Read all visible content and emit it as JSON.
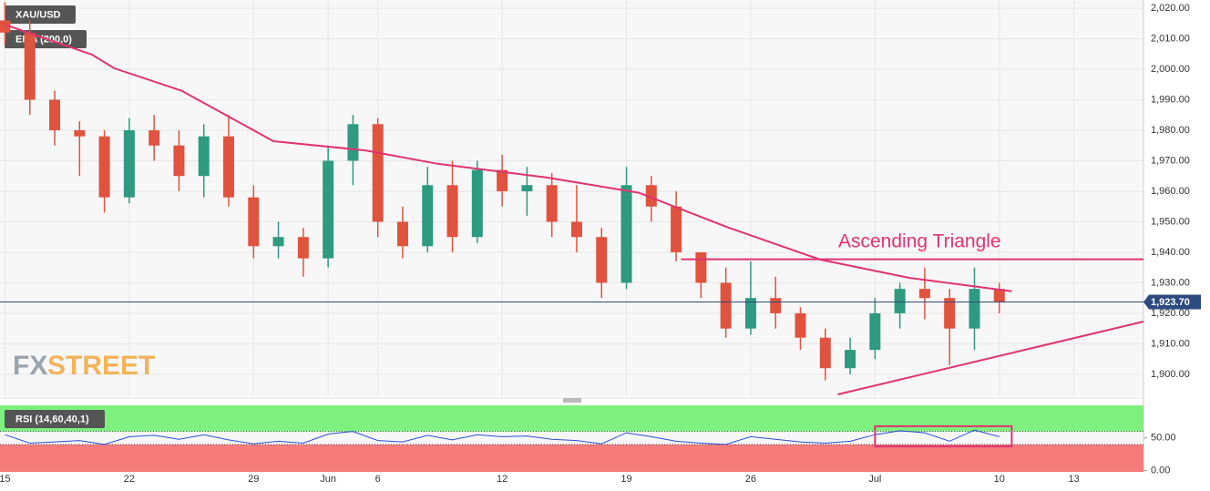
{
  "chart_data": {
    "type": "candlestick",
    "symbol": "XAU/USD",
    "watermark": {
      "prefix": "FX",
      "suffix": "STREET"
    },
    "annotation": "Ascending Triangle",
    "up_color": "#2e9a7f",
    "down_color": "#e0533e",
    "x": [
      0,
      1,
      2,
      3,
      4,
      5,
      6,
      7,
      8,
      9,
      10,
      11,
      12,
      13,
      14,
      15,
      16,
      17,
      18,
      19,
      20,
      21,
      22,
      23,
      24,
      25,
      26,
      27,
      28,
      29,
      30,
      31,
      32,
      33,
      34,
      35,
      36,
      37,
      38,
      39,
      40
    ],
    "open": [
      2016,
      2012,
      1990,
      1980,
      1978,
      1958,
      1980,
      1975,
      1965,
      1978,
      1958,
      1942,
      1945,
      1938,
      1970,
      1982,
      1950,
      1942,
      1962,
      1945,
      1967,
      1960,
      1962,
      1950,
      1945,
      1930,
      1962,
      1955,
      1940,
      1930,
      1915,
      1925,
      1920,
      1912,
      1902,
      1908,
      1920,
      1928,
      1925,
      1915,
      1928
    ],
    "high": [
      2022,
      2016,
      1993,
      1983,
      1980,
      1984,
      1985,
      1980,
      1982,
      1985,
      1962,
      1950,
      1948,
      1975,
      1985,
      1984,
      1955,
      1968,
      1970,
      1970,
      1972,
      1968,
      1966,
      1962,
      1948,
      1968,
      1965,
      1960,
      1940,
      1935,
      1937,
      1932,
      1922,
      1915,
      1912,
      1925,
      1930,
      1935,
      1928,
      1935,
      1930
    ],
    "low": [
      2008,
      1985,
      1975,
      1965,
      1953,
      1956,
      1970,
      1960,
      1958,
      1955,
      1938,
      1938,
      1932,
      1935,
      1962,
      1945,
      1938,
      1940,
      1940,
      1943,
      1955,
      1952,
      1945,
      1940,
      1925,
      1928,
      1950,
      1937,
      1925,
      1912,
      1913,
      1915,
      1908,
      1898,
      1900,
      1905,
      1915,
      1918,
      1903,
      1908,
      1920
    ],
    "close": [
      2012,
      1990,
      1980,
      1978,
      1958,
      1980,
      1975,
      1965,
      1978,
      1958,
      1942,
      1945,
      1938,
      1970,
      1982,
      1950,
      1942,
      1962,
      1945,
      1967,
      1960,
      1962,
      1950,
      1945,
      1930,
      1962,
      1955,
      1940,
      1930,
      1915,
      1925,
      1920,
      1912,
      1902,
      1908,
      1920,
      1928,
      1925,
      1915,
      1928,
      1923.7
    ],
    "ema": {
      "name": "EMA (200,0)",
      "color": "#e0336f",
      "x": [
        0,
        3.5,
        4.4,
        7.1,
        10.8,
        14.5,
        17.4,
        21.8,
        25.5,
        29.1,
        32.8,
        36.4,
        40.5
      ],
      "values": [
        2014.6,
        2004.8,
        2000.3,
        1993,
        1976.4,
        1973.4,
        1969,
        1964.5,
        1959.5,
        1948.1,
        1937.6,
        1931.6,
        1927.2
      ]
    },
    "last_price": {
      "value": 1923.7,
      "label": "1,923.70"
    },
    "resistance": {
      "color": "#e0336f",
      "x": [
        27.2,
        45.8
      ],
      "values": [
        1937.7,
        1937.7
      ]
    },
    "support": {
      "color": "#e0336f",
      "x": [
        33.5,
        45.8
      ],
      "values": [
        1893.4,
        1917.3
      ]
    },
    "xlim": [
      -0.2,
      45.8
    ],
    "ylim": [
      1892.8,
      2022.7
    ],
    "grid": true,
    "yticks": [
      {
        "value": 1900,
        "label": "1,900.00"
      },
      {
        "value": 1910,
        "label": "1,910.00"
      },
      {
        "value": 1920,
        "label": "1,920.00"
      },
      {
        "value": 1930,
        "label": "1,930.00"
      },
      {
        "value": 1940,
        "label": "1,940.00"
      },
      {
        "value": 1950,
        "label": "1,950.00"
      },
      {
        "value": 1960,
        "label": "1,960.00"
      },
      {
        "value": 1970,
        "label": "1,970.00"
      },
      {
        "value": 1980,
        "label": "1,980.00"
      },
      {
        "value": 1990,
        "label": "1,990.00"
      },
      {
        "value": 2000,
        "label": "2,000.00"
      },
      {
        "value": 2010,
        "label": "2,010.00"
      },
      {
        "value": 2020,
        "label": "2,020.00"
      }
    ],
    "xticks": [
      {
        "value": 0,
        "label": "15"
      },
      {
        "value": 5,
        "label": "22"
      },
      {
        "value": 10,
        "label": "29"
      },
      {
        "value": 13,
        "label": "Jun"
      },
      {
        "value": 15,
        "label": "6"
      },
      {
        "value": 20,
        "label": "12"
      },
      {
        "value": 25,
        "label": "19"
      },
      {
        "value": 30,
        "label": "26"
      },
      {
        "value": 35,
        "label": "Jul"
      },
      {
        "value": 40,
        "label": "10"
      },
      {
        "value": 43,
        "label": "13"
      }
    ],
    "rsi": {
      "name": "RSI (14,60,40,1)",
      "color": "#2a4fd6",
      "upper": 60,
      "lower": 40,
      "values": [
        55,
        42,
        44,
        46,
        40,
        52,
        54,
        48,
        55,
        47,
        41,
        45,
        42,
        56,
        60,
        46,
        44,
        54,
        47,
        55,
        52,
        53,
        48,
        46,
        41,
        58,
        52,
        45,
        42,
        40,
        52,
        48,
        44,
        42,
        45,
        55,
        61,
        58,
        45,
        62,
        52
      ],
      "ylim": [
        -2,
        100
      ],
      "yticks": [
        {
          "value": 0,
          "label": "0.00"
        },
        {
          "value": 50,
          "label": "50.00"
        }
      ],
      "box": {
        "color": "#e0336f",
        "x": [
          35,
          40.5
        ],
        "values": [
          37,
          68
        ]
      }
    }
  }
}
